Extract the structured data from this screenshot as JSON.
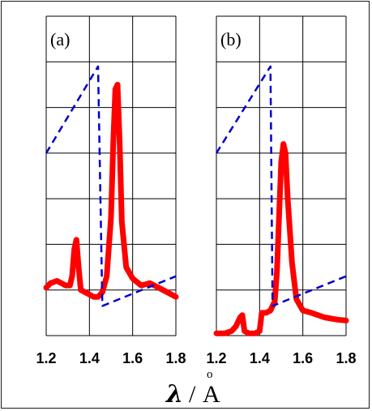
{
  "chart_data": [
    {
      "type": "line",
      "panel_label": "(a)",
      "x_ticks": [
        "1.2",
        "1.4",
        "1.6",
        "1.8"
      ],
      "xlim": [
        1.2,
        1.8
      ],
      "ylim": [
        0,
        7
      ],
      "grid": true,
      "series": [
        {
          "style": "solid",
          "color": "#ff0000",
          "points": [
            [
              1.2,
              1.05
            ],
            [
              1.22,
              1.15
            ],
            [
              1.25,
              1.2
            ],
            [
              1.27,
              1.15
            ],
            [
              1.29,
              1.1
            ],
            [
              1.31,
              1.1
            ],
            [
              1.32,
              1.3
            ],
            [
              1.33,
              1.9
            ],
            [
              1.34,
              2.1
            ],
            [
              1.35,
              1.5
            ],
            [
              1.36,
              1.0
            ],
            [
              1.38,
              0.95
            ],
            [
              1.4,
              0.9
            ],
            [
              1.42,
              0.85
            ],
            [
              1.44,
              0.85
            ],
            [
              1.46,
              0.95
            ],
            [
              1.48,
              1.3
            ],
            [
              1.5,
              2.6
            ],
            [
              1.51,
              4.2
            ],
            [
              1.52,
              5.4
            ],
            [
              1.53,
              5.5
            ],
            [
              1.54,
              4.2
            ],
            [
              1.55,
              2.5
            ],
            [
              1.57,
              1.5
            ],
            [
              1.6,
              1.25
            ],
            [
              1.64,
              1.1
            ],
            [
              1.68,
              1.15
            ],
            [
              1.72,
              1.05
            ],
            [
              1.76,
              0.95
            ],
            [
              1.8,
              0.85
            ]
          ]
        },
        {
          "style": "dashed",
          "color": "#0000cc",
          "points": [
            [
              1.2,
              4.0
            ],
            [
              1.44,
              5.9
            ],
            [
              1.46,
              0.65
            ],
            [
              1.8,
              1.3
            ]
          ]
        }
      ]
    },
    {
      "type": "line",
      "panel_label": "(b)",
      "x_ticks": [
        "1.2",
        "1.4",
        "1.6",
        "1.8"
      ],
      "xlim": [
        1.2,
        1.8
      ],
      "ylim": [
        0,
        7
      ],
      "grid": true,
      "series": [
        {
          "style": "solid",
          "color": "#ff0000",
          "points": [
            [
              1.2,
              0.05
            ],
            [
              1.24,
              0.05
            ],
            [
              1.27,
              0.1
            ],
            [
              1.29,
              0.2
            ],
            [
              1.31,
              0.4
            ],
            [
              1.32,
              0.45
            ],
            [
              1.33,
              0.1
            ],
            [
              1.35,
              0.05
            ],
            [
              1.38,
              0.05
            ],
            [
              1.4,
              0.1
            ],
            [
              1.41,
              0.5
            ],
            [
              1.43,
              0.5
            ],
            [
              1.45,
              0.55
            ],
            [
              1.47,
              0.75
            ],
            [
              1.48,
              1.4
            ],
            [
              1.49,
              2.6
            ],
            [
              1.5,
              3.8
            ],
            [
              1.51,
              4.2
            ],
            [
              1.52,
              4.0
            ],
            [
              1.53,
              3.0
            ],
            [
              1.55,
              1.6
            ],
            [
              1.57,
              0.8
            ],
            [
              1.6,
              0.55
            ],
            [
              1.64,
              0.5
            ],
            [
              1.7,
              0.4
            ],
            [
              1.76,
              0.35
            ],
            [
              1.8,
              0.33
            ]
          ]
        },
        {
          "style": "dashed",
          "color": "#0000cc",
          "points": [
            [
              1.2,
              4.0
            ],
            [
              1.45,
              5.9
            ],
            [
              1.46,
              0.65
            ],
            [
              1.8,
              1.3
            ]
          ]
        }
      ]
    }
  ],
  "x_axis_label": {
    "symbol": "λ",
    "separator": "/",
    "unit": "A",
    "unit_accent": "o"
  }
}
